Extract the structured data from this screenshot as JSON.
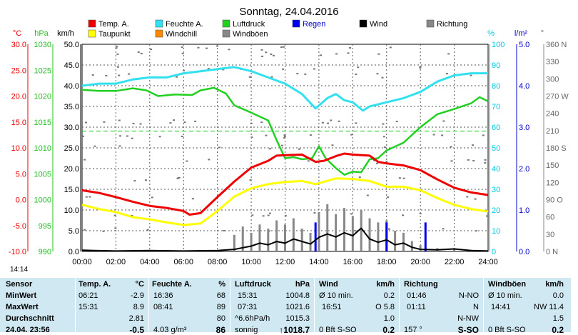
{
  "chart_data": {
    "type": "line",
    "title": "Sonntag, 24.04.2016",
    "x": [
      "00:00",
      "02:00",
      "04:00",
      "06:00",
      "08:00",
      "10:00",
      "12:00",
      "14:00",
      "16:00",
      "18:00",
      "20:00",
      "22:00",
      "24:00"
    ],
    "legend": [
      {
        "name": "Temp. A.",
        "color": "#ee0000"
      },
      {
        "name": "Feuchte A.",
        "color": "#33e0f0"
      },
      {
        "name": "Luftdruck",
        "color": "#22d022"
      },
      {
        "name": "Regen",
        "color": "#0000ee"
      },
      {
        "name": "Wind",
        "color": "#000000"
      },
      {
        "name": "Richtung",
        "color": "#888888"
      },
      {
        "name": "Taupunkt",
        "color": "#ffff00"
      },
      {
        "name": "Windchill",
        "color": "#ff8800"
      },
      {
        "name": "Windböen",
        "color": "#888888"
      }
    ],
    "axes": {
      "temp": {
        "label": "°C",
        "color": "#ee0000",
        "ticks": [
          "30.0",
          "25.0",
          "20.0",
          "15.0",
          "10.0",
          "5.0",
          "0.0",
          "-5.0",
          "-10.0"
        ]
      },
      "pressure": {
        "label": "hPa",
        "color": "#22c022",
        "ticks": [
          "1030",
          "1025",
          "1020",
          "1015",
          "1010",
          "1005",
          "1000",
          "995",
          "990"
        ]
      },
      "wind": {
        "label": "km/h",
        "color": "#000000",
        "ticks": [
          "50.0",
          "45.0",
          "40.0",
          "35.0",
          "30.0",
          "25.0",
          "20.0",
          "15.0",
          "10.0",
          "5.0",
          "0.0"
        ]
      },
      "humidity": {
        "label": "%",
        "color": "#00c8e0",
        "ticks": [
          "100",
          "90",
          "80",
          "70",
          "60",
          "50",
          "40",
          "30",
          "20",
          "10",
          "0"
        ]
      },
      "rain": {
        "label": "l/m²",
        "color": "#0000cc",
        "ticks": [
          "5.0",
          "4.0",
          "3.0",
          "2.0",
          "1.0",
          "0.0"
        ]
      },
      "direction": {
        "label": "°",
        "color": "#666666",
        "ticks": [
          "360 N",
          "330",
          "300",
          "270 W",
          "240",
          "210",
          "180 S",
          "150",
          "120",
          "90 O",
          "60",
          "30",
          "0 N"
        ]
      }
    },
    "series": [
      {
        "name": "Temp. A.",
        "axis": "temp",
        "values": [
          {
            "t": 0,
            "v": 1.8
          },
          {
            "t": 1,
            "v": 1.3
          },
          {
            "t": 2,
            "v": 0.5
          },
          {
            "t": 3,
            "v": -0.4
          },
          {
            "t": 4,
            "v": -1.2
          },
          {
            "t": 5,
            "v": -1.6
          },
          {
            "t": 6,
            "v": -2.2
          },
          {
            "t": 6.35,
            "v": -2.9
          },
          {
            "t": 7,
            "v": -2.6
          },
          {
            "t": 8,
            "v": 0.5
          },
          {
            "t": 9,
            "v": 3.5
          },
          {
            "t": 10,
            "v": 6.2
          },
          {
            "t": 11,
            "v": 7.5
          },
          {
            "t": 11.5,
            "v": 8.5
          },
          {
            "t": 12,
            "v": 8.6
          },
          {
            "t": 13,
            "v": 8.7
          },
          {
            "t": 13.8,
            "v": 7.3
          },
          {
            "t": 14.3,
            "v": 7.5
          },
          {
            "t": 15,
            "v": 8.4
          },
          {
            "t": 15.5,
            "v": 8.9
          },
          {
            "t": 16,
            "v": 8.7
          },
          {
            "t": 17,
            "v": 8.5
          },
          {
            "t": 17.5,
            "v": 7.3
          },
          {
            "t": 18,
            "v": 7.0
          },
          {
            "t": 19,
            "v": 6.6
          },
          {
            "t": 20,
            "v": 5.7
          },
          {
            "t": 21,
            "v": 3.9
          },
          {
            "t": 22,
            "v": 2.3
          },
          {
            "t": 23,
            "v": 1.4
          },
          {
            "t": 24,
            "v": 0.9
          }
        ]
      },
      {
        "name": "Taupunkt",
        "axis": "temp",
        "values": [
          {
            "t": 0,
            "v": -1.0
          },
          {
            "t": 1,
            "v": -1.8
          },
          {
            "t": 2,
            "v": -2.4
          },
          {
            "t": 3,
            "v": -3.4
          },
          {
            "t": 4,
            "v": -3.8
          },
          {
            "t": 5,
            "v": -4.4
          },
          {
            "t": 6,
            "v": -4.9
          },
          {
            "t": 7,
            "v": -4.6
          },
          {
            "t": 8,
            "v": -2.2
          },
          {
            "t": 9,
            "v": 0.6
          },
          {
            "t": 10,
            "v": 2.2
          },
          {
            "t": 11,
            "v": 3.0
          },
          {
            "t": 12,
            "v": 3.4
          },
          {
            "t": 13,
            "v": 3.6
          },
          {
            "t": 13.8,
            "v": 3.0
          },
          {
            "t": 15,
            "v": 4.1
          },
          {
            "t": 16,
            "v": 4.0
          },
          {
            "t": 17,
            "v": 3.6
          },
          {
            "t": 18,
            "v": 2.5
          },
          {
            "t": 19,
            "v": 2.5
          },
          {
            "t": 20,
            "v": 1.8
          },
          {
            "t": 21,
            "v": 0.3
          },
          {
            "t": 22,
            "v": -1.0
          },
          {
            "t": 23,
            "v": -1.8
          },
          {
            "t": 24,
            "v": -2.3
          }
        ]
      },
      {
        "name": "Feuchte A.",
        "axis": "humidity",
        "values": [
          {
            "t": 0,
            "v": 80
          },
          {
            "t": 1,
            "v": 81
          },
          {
            "t": 2,
            "v": 81
          },
          {
            "t": 3,
            "v": 83
          },
          {
            "t": 4,
            "v": 84
          },
          {
            "t": 5,
            "v": 84
          },
          {
            "t": 6,
            "v": 86
          },
          {
            "t": 7,
            "v": 87
          },
          {
            "t": 8,
            "v": 88
          },
          {
            "t": 9,
            "v": 89
          },
          {
            "t": 10,
            "v": 87
          },
          {
            "t": 11,
            "v": 84
          },
          {
            "t": 12,
            "v": 81
          },
          {
            "t": 13,
            "v": 76
          },
          {
            "t": 13.8,
            "v": 69
          },
          {
            "t": 14.5,
            "v": 74
          },
          {
            "t": 15,
            "v": 76
          },
          {
            "t": 15.5,
            "v": 73
          },
          {
            "t": 16,
            "v": 72
          },
          {
            "t": 16.6,
            "v": 68
          },
          {
            "t": 17,
            "v": 70
          },
          {
            "t": 18,
            "v": 72
          },
          {
            "t": 19,
            "v": 74
          },
          {
            "t": 20,
            "v": 77
          },
          {
            "t": 21,
            "v": 82
          },
          {
            "t": 22,
            "v": 85
          },
          {
            "t": 23,
            "v": 86
          },
          {
            "t": 24,
            "v": 86
          }
        ]
      },
      {
        "name": "Luftdruck",
        "axis": "pressure",
        "values": [
          {
            "t": 0,
            "v": 1021.2
          },
          {
            "t": 1,
            "v": 1021.0
          },
          {
            "t": 2,
            "v": 1021.0
          },
          {
            "t": 3,
            "v": 1021.5
          },
          {
            "t": 3.8,
            "v": 1021.1
          },
          {
            "t": 4.5,
            "v": 1020.0
          },
          {
            "t": 5.5,
            "v": 1020.3
          },
          {
            "t": 6.5,
            "v": 1020.2
          },
          {
            "t": 7,
            "v": 1021.1
          },
          {
            "t": 7.8,
            "v": 1021.6
          },
          {
            "t": 8.5,
            "v": 1020.5
          },
          {
            "t": 9,
            "v": 1018.2
          },
          {
            "t": 10,
            "v": 1016.8
          },
          {
            "t": 11,
            "v": 1015.3
          },
          {
            "t": 11.5,
            "v": 1011.5
          },
          {
            "t": 12,
            "v": 1008.0
          },
          {
            "t": 12.5,
            "v": 1008.2
          },
          {
            "t": 13,
            "v": 1007.8
          },
          {
            "t": 13.6,
            "v": 1008.0
          },
          {
            "t": 14,
            "v": 1010.3
          },
          {
            "t": 14.4,
            "v": 1008.0
          },
          {
            "t": 15,
            "v": 1006.1
          },
          {
            "t": 15.5,
            "v": 1004.8
          },
          {
            "t": 16,
            "v": 1005.4
          },
          {
            "t": 16.5,
            "v": 1005.3
          },
          {
            "t": 17,
            "v": 1007.8
          },
          {
            "t": 17.5,
            "v": 1008.0
          },
          {
            "t": 18,
            "v": 1009.5
          },
          {
            "t": 19,
            "v": 1011.0
          },
          {
            "t": 20,
            "v": 1014.0
          },
          {
            "t": 21,
            "v": 1016.5
          },
          {
            "t": 22,
            "v": 1017.5
          },
          {
            "t": 23,
            "v": 1018.6
          },
          {
            "t": 23.5,
            "v": 1019.8
          },
          {
            "t": 24,
            "v": 1019.0
          }
        ]
      },
      {
        "name": "Wind",
        "axis": "wind",
        "values": [
          {
            "t": 0,
            "v": 0.3
          },
          {
            "t": 2,
            "v": 0.1
          },
          {
            "t": 4,
            "v": 0.2
          },
          {
            "t": 6,
            "v": 0.1
          },
          {
            "t": 8,
            "v": 0.2
          },
          {
            "t": 9,
            "v": 0.5
          },
          {
            "t": 10,
            "v": 1.3
          },
          {
            "t": 10.5,
            "v": 2.0
          },
          {
            "t": 11,
            "v": 1.6
          },
          {
            "t": 11.5,
            "v": 2.4
          },
          {
            "t": 12,
            "v": 2.0
          },
          {
            "t": 12.5,
            "v": 3.0
          },
          {
            "t": 13,
            "v": 2.4
          },
          {
            "t": 13.5,
            "v": 1.8
          },
          {
            "t": 14,
            "v": 3.4
          },
          {
            "t": 14.5,
            "v": 4.2
          },
          {
            "t": 15,
            "v": 3.5
          },
          {
            "t": 15.5,
            "v": 4.5
          },
          {
            "t": 16,
            "v": 3.8
          },
          {
            "t": 16.5,
            "v": 5.6
          },
          {
            "t": 17,
            "v": 3.0
          },
          {
            "t": 17.5,
            "v": 2.2
          },
          {
            "t": 18,
            "v": 2.8
          },
          {
            "t": 18.5,
            "v": 1.6
          },
          {
            "t": 19,
            "v": 2.0
          },
          {
            "t": 19.5,
            "v": 1.0
          },
          {
            "t": 20,
            "v": 0.5
          },
          {
            "t": 21,
            "v": 0.4
          },
          {
            "t": 22,
            "v": 0.6
          },
          {
            "t": 23,
            "v": 0.2
          },
          {
            "t": 24,
            "v": 0.1
          }
        ]
      },
      {
        "name": "Windböen",
        "axis": "wind",
        "values": [
          {
            "t": 9,
            "v": 4.0
          },
          {
            "t": 9.5,
            "v": 6.0
          },
          {
            "t": 10,
            "v": 4.5
          },
          {
            "t": 10.5,
            "v": 6.5
          },
          {
            "t": 11,
            "v": 5.5
          },
          {
            "t": 11.5,
            "v": 7.5
          },
          {
            "t": 12,
            "v": 6.5
          },
          {
            "t": 12.5,
            "v": 8.0
          },
          {
            "t": 13,
            "v": 5.5
          },
          {
            "t": 13.5,
            "v": 4.5
          },
          {
            "t": 14,
            "v": 9.5
          },
          {
            "t": 14.5,
            "v": 11.4
          },
          {
            "t": 15,
            "v": 9.0
          },
          {
            "t": 15.5,
            "v": 10.5
          },
          {
            "t": 16,
            "v": 8.5
          },
          {
            "t": 16.5,
            "v": 10.0
          },
          {
            "t": 17,
            "v": 8.0
          },
          {
            "t": 17.5,
            "v": 7.0
          },
          {
            "t": 18,
            "v": 7.5
          },
          {
            "t": 18.5,
            "v": 5.0
          },
          {
            "t": 19,
            "v": 4.5
          },
          {
            "t": 19.5,
            "v": 2.5
          },
          {
            "t": 20,
            "v": 1.5
          },
          {
            "t": 21,
            "v": 0.8
          },
          {
            "t": 22,
            "v": 0.8
          },
          {
            "t": 23,
            "v": 0.4
          }
        ]
      },
      {
        "name": "Regen",
        "axis": "rain",
        "values": [
          {
            "t": 13.8,
            "v": 0.7
          },
          {
            "t": 18.0,
            "v": 0.7
          },
          {
            "t": 20.3,
            "v": 0.7
          }
        ]
      }
    ],
    "reference_line": {
      "axis": "pressure",
      "value": 1013.25,
      "color": "#00cc00",
      "style": "dashed"
    },
    "xlim": [
      0,
      24
    ],
    "grid": true,
    "legend_position": "top"
  },
  "status": {
    "time": "14:14"
  },
  "stats": {
    "labels": {
      "sensor": "Sensor",
      "min": "MinWert",
      "max": "MaxWert",
      "avg": "Durchschnitt",
      "current": "24.04. 23:56"
    },
    "temp": {
      "title": "Temp. A.",
      "unit": "°C",
      "min_time": "06:21",
      "min": "-2.9",
      "max_time": "15:31",
      "max": "8.9",
      "avg": "2.81",
      "current": "-0.5"
    },
    "hum": {
      "title": "Feuchte A.",
      "unit": "%",
      "min_time": "16:36",
      "min": "68",
      "max_time": "08:41",
      "max": "89",
      "avg": "80",
      "current_extra": "4.03 g/m³",
      "current": "86"
    },
    "pres": {
      "title": "Luftdruck",
      "unit": "hPa",
      "min_time": "15:31",
      "min": "1004.8",
      "max_time": "07:31",
      "max": "1021.6",
      "avg_label": "^6.6hPa/h",
      "avg": "1015.3",
      "current_label": "sonnig",
      "current": "↑1018.7"
    },
    "wind": {
      "title": "Wind",
      "unit": "km/h",
      "min_label": "Ø 10 min.",
      "min": "0.2",
      "max_time": "16:51",
      "max": "O 5.8",
      "avg": "1.0",
      "current_label": "0 Bft S-SO",
      "current": "0.2"
    },
    "dir": {
      "title": "Richtung",
      "min_time": "01:46",
      "min": "N-NO",
      "max_time": "01:11",
      "max": "N",
      "avg": "N-NW",
      "current_label": "157 °",
      "current": "S-SO"
    },
    "gust": {
      "title": "Windböen",
      "unit": "km/h",
      "min_label": "Ø 10 min.",
      "min": "0.0",
      "max_time": "14:41",
      "max": "NW 11.4",
      "avg": "1.5",
      "current_label": "0 Bft S-SO",
      "current": "0.2"
    }
  }
}
